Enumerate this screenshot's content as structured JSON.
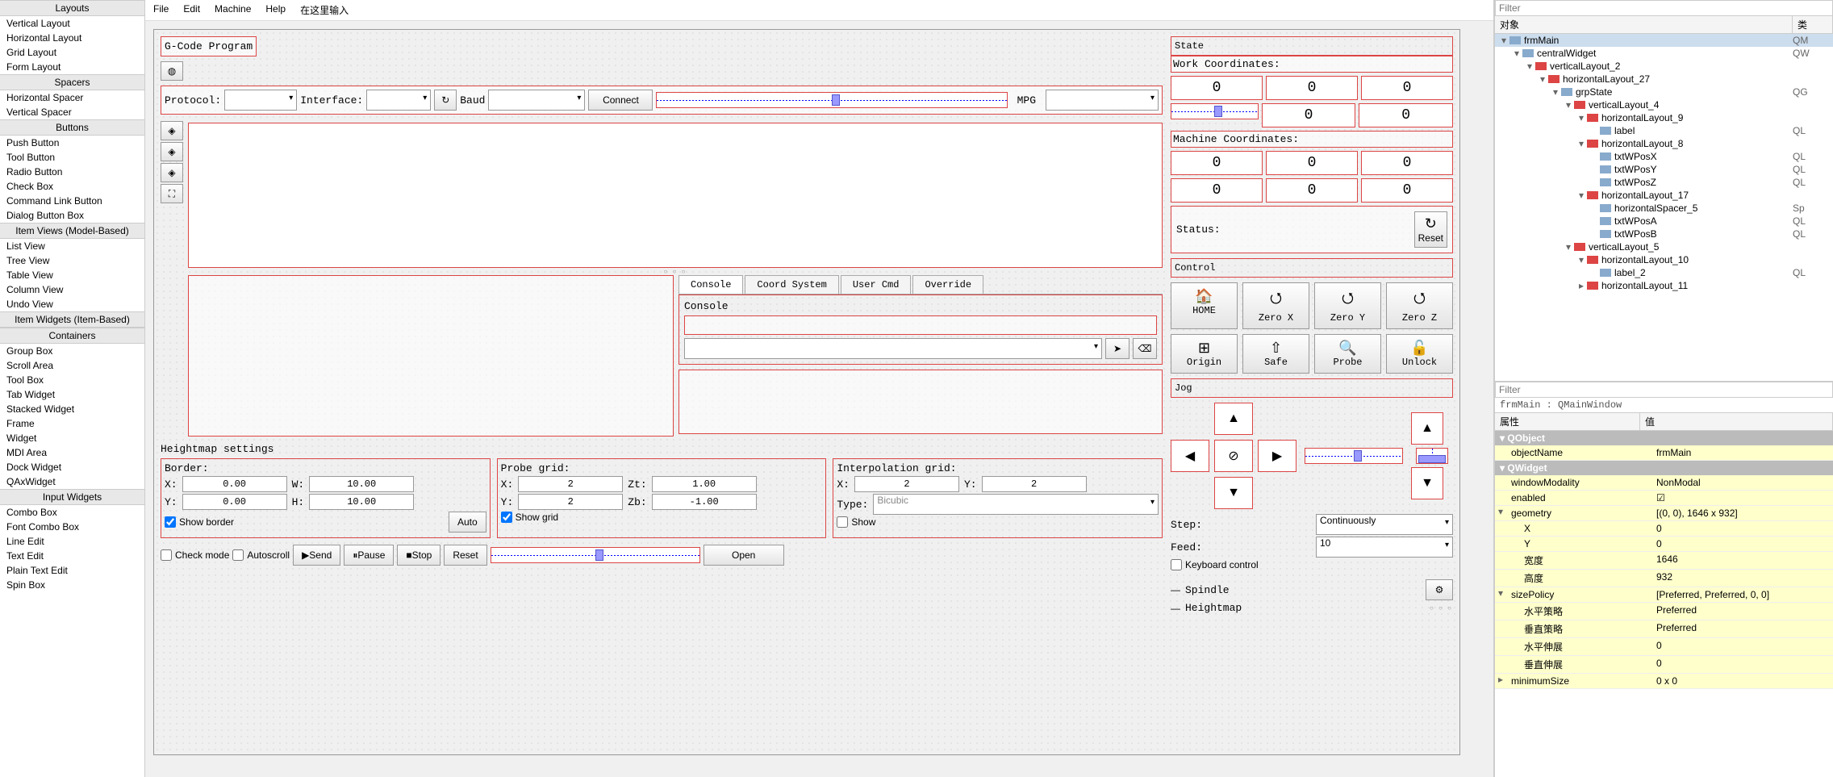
{
  "widgetbox": {
    "categories": [
      {
        "title": "Layouts",
        "items": [
          "Vertical Layout",
          "Horizontal Layout",
          "Grid Layout",
          "Form Layout"
        ]
      },
      {
        "title": "Spacers",
        "items": [
          "Horizontal Spacer",
          "Vertical Spacer"
        ]
      },
      {
        "title": "Buttons",
        "items": [
          "Push Button",
          "Tool Button",
          "Radio Button",
          "Check Box",
          "Command Link Button",
          "Dialog Button Box"
        ]
      },
      {
        "title": "Item Views (Model-Based)",
        "items": [
          "List View",
          "Tree View",
          "Table View",
          "Column View",
          "Undo View"
        ]
      },
      {
        "title": "Item Widgets (Item-Based)",
        "items": []
      },
      {
        "title": "Containers",
        "items": [
          "Group Box",
          "Scroll Area",
          "Tool Box",
          "Tab Widget",
          "Stacked Widget",
          "Frame",
          "Widget",
          "MDI Area",
          "Dock Widget",
          "QAxWidget"
        ]
      },
      {
        "title": "Input Widgets",
        "items": [
          "Combo Box",
          "Font Combo Box",
          "Line Edit",
          "Text Edit",
          "Plain Text Edit",
          "Spin Box"
        ]
      }
    ]
  },
  "menubar": [
    "File",
    "Edit",
    "Machine",
    "Help",
    "在这里输入"
  ],
  "form": {
    "gcode_title": "G-Code Program",
    "protocol_lbl": "Protocol:",
    "interface_lbl": "Interface:",
    "baud_lbl": "Baud",
    "connect_lbl": "Connect",
    "mpg_lbl": "MPG",
    "tabs": [
      "Console",
      "Coord System",
      "User Cmd",
      "Override"
    ],
    "console_lbl": "Console",
    "hm_title": "Heightmap settings",
    "border_lbl": "Border:",
    "probe_lbl": "Probe grid:",
    "interp_lbl": "Interpolation grid:",
    "x": "X:",
    "y": "Y:",
    "w": "W:",
    "h": "H:",
    "zt": "Zt:",
    "zb": "Zb:",
    "type": "Type:",
    "border_vals": {
      "x": "0.00",
      "y": "0.00",
      "w": "10.00",
      "h": "10.00"
    },
    "probe_vals": {
      "x": "2",
      "y": "2",
      "zt": "1.00",
      "zb": "-1.00"
    },
    "interp_vals": {
      "x": "2",
      "y": "2",
      "type": "Bicubic"
    },
    "show_border": "Show border",
    "auto": "Auto",
    "show_grid": "Show grid",
    "show": "Show",
    "check_mode": "Check mode",
    "autoscroll": "Autoscroll",
    "send": "Send",
    "pause": "Pause",
    "stop": "Stop",
    "reset": "Reset",
    "open": "Open"
  },
  "state": {
    "title": "State",
    "work_lbl": "Work Coordinates:",
    "mach_lbl": "Machine Coordinates:",
    "work_vals": [
      "0",
      "0",
      "0"
    ],
    "work_vals2": [
      "0",
      "0"
    ],
    "mach_vals": [
      "0",
      "0",
      "0"
    ],
    "mach_vals2": [
      "0",
      "0",
      "0"
    ],
    "status_lbl": "Status:",
    "reset": "Reset",
    "control": "Control",
    "ctrl_btns": [
      {
        "ico": "🏠",
        "lbl": "HOME"
      },
      {
        "ico": "⭯",
        "lbl": "Zero X"
      },
      {
        "ico": "⭯",
        "lbl": "Zero Y"
      },
      {
        "ico": "⭯",
        "lbl": "Zero Z"
      },
      {
        "ico": "⊞",
        "lbl": "Origin"
      },
      {
        "ico": "⇧",
        "lbl": "Safe"
      },
      {
        "ico": "🔍",
        "lbl": "Probe"
      },
      {
        "ico": "🔓",
        "lbl": "Unlock"
      }
    ],
    "jog": "Jog",
    "step_lbl": "Step:",
    "step_val": "Continuously",
    "feed_lbl": "Feed:",
    "feed_val": "10",
    "kbd": "Keyboard control",
    "spindle": "Spindle",
    "heightmap": "Heightmap"
  },
  "tree": {
    "hdr_obj": "对象",
    "hdr_cls": "类",
    "nodes": [
      {
        "d": 0,
        "e": "▾",
        "t": "w",
        "n": "frmMain",
        "c": "QM"
      },
      {
        "d": 1,
        "e": "▾",
        "t": "w",
        "n": "centralWidget",
        "c": "QW"
      },
      {
        "d": 2,
        "e": "▾",
        "t": "l",
        "n": "verticalLayout_2",
        "c": ""
      },
      {
        "d": 3,
        "e": "▾",
        "t": "l",
        "n": "horizontalLayout_27",
        "c": ""
      },
      {
        "d": 4,
        "e": "▾",
        "t": "w",
        "n": "grpState",
        "c": "QG"
      },
      {
        "d": 5,
        "e": "▾",
        "t": "l",
        "n": "verticalLayout_4",
        "c": ""
      },
      {
        "d": 6,
        "e": "▾",
        "t": "l",
        "n": "horizontalLayout_9",
        "c": ""
      },
      {
        "d": 7,
        "e": "",
        "t": "w",
        "n": "label",
        "c": "QL"
      },
      {
        "d": 6,
        "e": "▾",
        "t": "l",
        "n": "horizontalLayout_8",
        "c": ""
      },
      {
        "d": 7,
        "e": "",
        "t": "w",
        "n": "txtWPosX",
        "c": "QL"
      },
      {
        "d": 7,
        "e": "",
        "t": "w",
        "n": "txtWPosY",
        "c": "QL"
      },
      {
        "d": 7,
        "e": "",
        "t": "w",
        "n": "txtWPosZ",
        "c": "QL"
      },
      {
        "d": 6,
        "e": "▾",
        "t": "l",
        "n": "horizontalLayout_17",
        "c": ""
      },
      {
        "d": 7,
        "e": "",
        "t": "w",
        "n": "horizontalSpacer_5",
        "c": "Sp"
      },
      {
        "d": 7,
        "e": "",
        "t": "w",
        "n": "txtWPosA",
        "c": "QL"
      },
      {
        "d": 7,
        "e": "",
        "t": "w",
        "n": "txtWPosB",
        "c": "QL"
      },
      {
        "d": 5,
        "e": "▾",
        "t": "l",
        "n": "verticalLayout_5",
        "c": ""
      },
      {
        "d": 6,
        "e": "▾",
        "t": "l",
        "n": "horizontalLayout_10",
        "c": ""
      },
      {
        "d": 7,
        "e": "",
        "t": "w",
        "n": "label_2",
        "c": "QL"
      },
      {
        "d": 6,
        "e": "▸",
        "t": "l",
        "n": "horizontalLayout_11",
        "c": ""
      }
    ]
  },
  "props": {
    "filter_ph": "Filter",
    "crumb": "frmMain : QMainWindow",
    "hdr_name": "属性",
    "hdr_val": "值",
    "rows": [
      {
        "cat": "QObject"
      },
      {
        "n": "objectName",
        "v": "frmMain",
        "y": 1
      },
      {
        "cat": "QWidget"
      },
      {
        "n": "windowModality",
        "v": "NonModal",
        "y": 1
      },
      {
        "n": "enabled",
        "v": "☑",
        "y": 1
      },
      {
        "n": "geometry",
        "v": "[(0, 0), 1646 x 932]",
        "y": 1,
        "e": "▾"
      },
      {
        "n": "X",
        "v": "0",
        "i": 1,
        "y": 1
      },
      {
        "n": "Y",
        "v": "0",
        "i": 1,
        "y": 1
      },
      {
        "n": "宽度",
        "v": "1646",
        "i": 1,
        "y": 1
      },
      {
        "n": "高度",
        "v": "932",
        "i": 1,
        "y": 1
      },
      {
        "n": "sizePolicy",
        "v": "[Preferred, Preferred, 0, 0]",
        "y": 1,
        "e": "▾"
      },
      {
        "n": "水平策略",
        "v": "Preferred",
        "i": 1,
        "y": 1
      },
      {
        "n": "垂直策略",
        "v": "Preferred",
        "i": 1,
        "y": 1
      },
      {
        "n": "水平伸展",
        "v": "0",
        "i": 1,
        "y": 1
      },
      {
        "n": "垂直伸展",
        "v": "0",
        "i": 1,
        "y": 1
      },
      {
        "n": "minimumSize",
        "v": "0 x 0",
        "y": 1,
        "e": "▸"
      }
    ]
  }
}
